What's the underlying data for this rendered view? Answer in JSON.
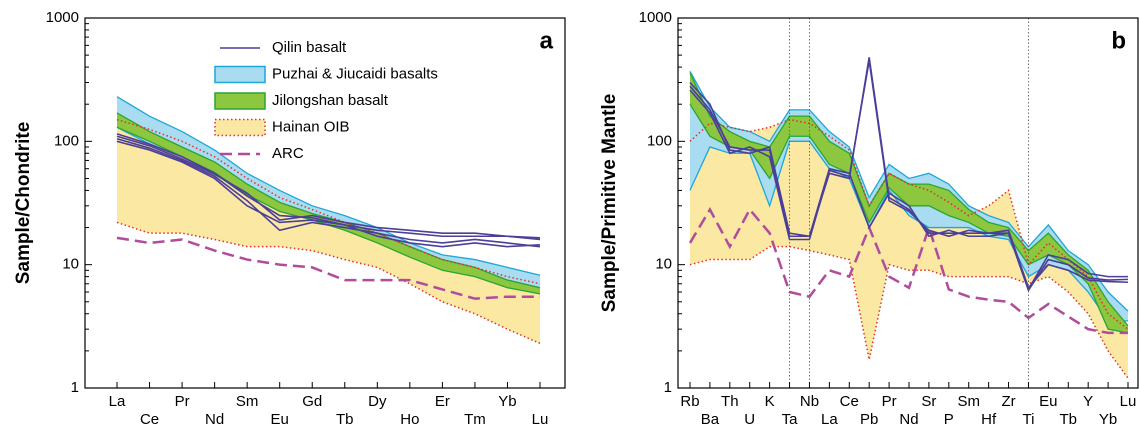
{
  "chart_data": [
    {
      "type": "spider",
      "panel": "a",
      "ylabel": "Sample/Chondrite",
      "log": true,
      "legend": true,
      "staggered_labels": true,
      "categories": [
        "La",
        "Ce",
        "Pr",
        "Nd",
        "Sm",
        "Eu",
        "Gd",
        "Tb",
        "Dy",
        "Ho",
        "Er",
        "Tm",
        "Yb",
        "Lu"
      ],
      "ylim": [
        1,
        1000
      ],
      "yticks": [
        1,
        10,
        100,
        1000
      ],
      "series": [
        {
          "name": "Qilin basalt",
          "kind": "lines",
          "color": "#4b3f98",
          "samples": [
            [
              115,
              95,
              75,
              55,
              36,
              25,
              24,
              21,
              19,
              18,
              17,
              17,
              17,
              16
            ],
            [
              105,
              88,
              70,
              52,
              33,
              19,
              22,
              20,
              18,
              16,
              15,
              16,
              15,
              14
            ],
            [
              100,
              85,
              68,
              50,
              30,
              22,
              23,
              21,
              17,
              15,
              14,
              15,
              14,
              14.5
            ],
            [
              110,
              92,
              72,
              54,
              38,
              23,
              25,
              22,
              20,
              19,
              18,
              18,
              17,
              16.5
            ]
          ]
        },
        {
          "name": "Puzhai & Jiucaidi basalts",
          "kind": "band",
          "color": "#a9dcf0",
          "edge": "#1ea7d8",
          "edge_style": "solid",
          "upper": [
            230,
            160,
            120,
            85,
            55,
            40,
            30,
            25,
            20,
            15,
            12,
            11,
            9.5,
            8.2
          ],
          "lower": [
            130,
            95,
            75,
            58,
            38,
            28,
            24,
            20,
            16,
            12,
            10,
            8.5,
            7.5,
            6.5
          ]
        },
        {
          "name": "Jilongshan basalt",
          "kind": "band",
          "color": "#8dc63f",
          "edge": "#2aa534",
          "edge_style": "solid",
          "upper": [
            170,
            120,
            90,
            68,
            45,
            32,
            26,
            22,
            18,
            14,
            11,
            9.5,
            7.5,
            6.5
          ],
          "lower": [
            130,
            100,
            75,
            56,
            37,
            27,
            23,
            19,
            15,
            11.5,
            9,
            8,
            6.5,
            5.8
          ]
        },
        {
          "name": "Hainan OIB",
          "kind": "band",
          "color": "#fbe8a3",
          "edge": "#e0312a",
          "edge_style": "dotted",
          "upper": [
            150,
            125,
            100,
            75,
            50,
            35,
            28,
            22,
            18,
            14,
            11,
            9.5,
            8,
            7
          ],
          "lower": [
            22,
            18,
            18,
            16,
            14,
            14,
            13,
            11,
            9.5,
            7,
            5,
            4,
            3,
            2.3
          ]
        },
        {
          "name": "ARC",
          "kind": "line",
          "dash": true,
          "color": "#b04c9c",
          "values": [
            16.5,
            15,
            16,
            13,
            11,
            10,
            9.5,
            7.5,
            7.5,
            7.5,
            6.3,
            5.3,
            5.5,
            5.5
          ]
        }
      ]
    },
    {
      "type": "spider",
      "panel": "b",
      "ylabel": "Sample/Primitive Mantle",
      "log": true,
      "legend": false,
      "staggered_labels": true,
      "categories": [
        "Rb",
        "Ba",
        "Th",
        "U",
        "K",
        "Ta",
        "Nb",
        "La",
        "Ce",
        "Pb",
        "Pr",
        "Nd",
        "Sr",
        "P",
        "Sm",
        "Hf",
        "Zr",
        "Ti",
        "Eu",
        "Tb",
        "Y",
        "Yb",
        "Lu"
      ],
      "vline_categories": [
        5,
        6,
        17
      ],
      "ylim": [
        1,
        1000
      ],
      "yticks": [
        1,
        10,
        100,
        1000
      ],
      "series": [
        {
          "kind": "lines",
          "color": "#4b3f98",
          "samples": [
            [
              280,
              180,
              90,
              85,
              85,
              17,
              17,
              55,
              50,
              480,
              35,
              28,
              18,
              18,
              18,
              18,
              18,
              6.3,
              12,
              11,
              8.5,
              8,
              8
            ],
            [
              300,
              200,
              85,
              80,
              90,
              18,
              17,
              60,
              55,
              20,
              38,
              30,
              17,
              19,
              17,
              17,
              18,
              6.2,
              11,
              10,
              7.8,
              7.5,
              7.6
            ],
            [
              260,
              170,
              80,
              90,
              75,
              16,
              16,
              58,
              52,
              450,
              33,
              27,
              19,
              17,
              19,
              18,
              19,
              6.5,
              10,
              9,
              7.5,
              7.3,
              7.2
            ]
          ]
        },
        {
          "kind": "band",
          "color": "#a9dcf0",
          "edge": "#1ea7d8",
          "edge_style": "solid",
          "upper": [
            370,
            190,
            130,
            120,
            100,
            180,
            180,
            120,
            90,
            35,
            65,
            50,
            55,
            45,
            30,
            25,
            22,
            14,
            21,
            13,
            10,
            6,
            4.2
          ],
          "lower": [
            40,
            90,
            80,
            80,
            30,
            100,
            100,
            60,
            50,
            20,
            40,
            25,
            20,
            20,
            20,
            17,
            16,
            8,
            10,
            9,
            6,
            3.5,
            3.5
          ]
        },
        {
          "kind": "band",
          "color": "#8dc63f",
          "edge": "#2aa534",
          "edge_style": "solid",
          "upper": [
            360,
            160,
            120,
            100,
            90,
            160,
            160,
            100,
            80,
            30,
            55,
            45,
            45,
            40,
            28,
            22,
            20,
            13,
            18,
            12,
            9,
            5,
            3.2
          ],
          "lower": [
            200,
            110,
            90,
            85,
            50,
            110,
            110,
            65,
            55,
            22,
            42,
            30,
            30,
            25,
            22,
            18,
            17,
            10,
            12,
            10,
            7,
            3,
            2.8
          ]
        },
        {
          "kind": "band",
          "color": "#fbe8a3",
          "edge": "#e0312a",
          "edge_style": "dotted",
          "upper": [
            100,
            140,
            130,
            120,
            130,
            150,
            140,
            110,
            85,
            30,
            55,
            45,
            40,
            32,
            25,
            30,
            40,
            10,
            15,
            11,
            8,
            4,
            3
          ],
          "lower": [
            10,
            11,
            11,
            11,
            14,
            14,
            13,
            12,
            11,
            1.7,
            10,
            9,
            9,
            8,
            8,
            8,
            8,
            7,
            8,
            6,
            4,
            2,
            1.2
          ]
        },
        {
          "kind": "line",
          "dash": true,
          "color": "#b04c9c",
          "values": [
            15,
            28,
            14,
            28,
            18,
            6,
            5.5,
            9,
            8,
            20,
            8,
            6.5,
            20,
            6.3,
            5.5,
            5.2,
            5,
            3.7,
            4.8,
            3.8,
            3,
            2.8,
            2.8
          ]
        }
      ]
    }
  ]
}
